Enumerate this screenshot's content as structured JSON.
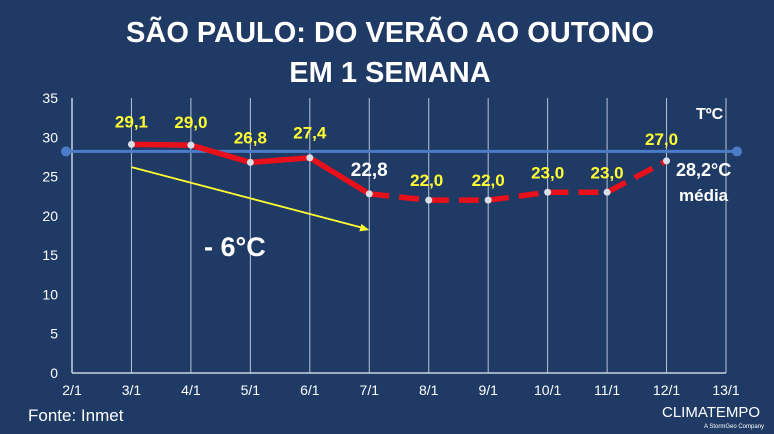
{
  "chart_data": {
    "type": "line",
    "title_line1": "SÃO PAULO: DO VERÃO AO OUTONO",
    "title_line2": "EM 1 SEMANA",
    "unit_label": "TºC",
    "categories": [
      "2/1",
      "3/1",
      "4/1",
      "5/1",
      "6/1",
      "7/1",
      "8/1",
      "9/1",
      "10/1",
      "11/1",
      "12/1",
      "13/1"
    ],
    "y_ticks": [
      "0",
      "5",
      "10",
      "15",
      "20",
      "25",
      "30",
      "35"
    ],
    "ylim": [
      0,
      35
    ],
    "series": [
      {
        "x": [
          "3/1",
          "4/1",
          "5/1",
          "6/1",
          "7/1",
          "8/1",
          "9/1",
          "10/1",
          "11/1",
          "12/1"
        ],
        "values": [
          29.1,
          29.0,
          26.8,
          27.4,
          22.8,
          22.0,
          22.0,
          23.0,
          23.0,
          27.0
        ],
        "labels": [
          "29,1",
          "29,0",
          "26,8",
          "27,4",
          "22,8",
          "22,0",
          "22,0",
          "23,0",
          "23,0",
          "27,0"
        ],
        "color": "#e8101a"
      }
    ],
    "average": {
      "value": 28.2,
      "label": "28,2°C",
      "sublabel": "média",
      "color": "#4a7cc7"
    },
    "arrow_annotation": {
      "label": "- 6°C",
      "from": [
        "3/1",
        26.2
      ],
      "to": [
        "7/1",
        18.2
      ],
      "color": "#ffff33"
    },
    "grid": true
  },
  "footer": {
    "source": "Fonte: Inmet",
    "brand": "CLIMATEMPO",
    "brand_sub": "A StormGeo Company"
  },
  "colors": {
    "background": "#1f3a64",
    "label_yellow": "#ffff33"
  }
}
